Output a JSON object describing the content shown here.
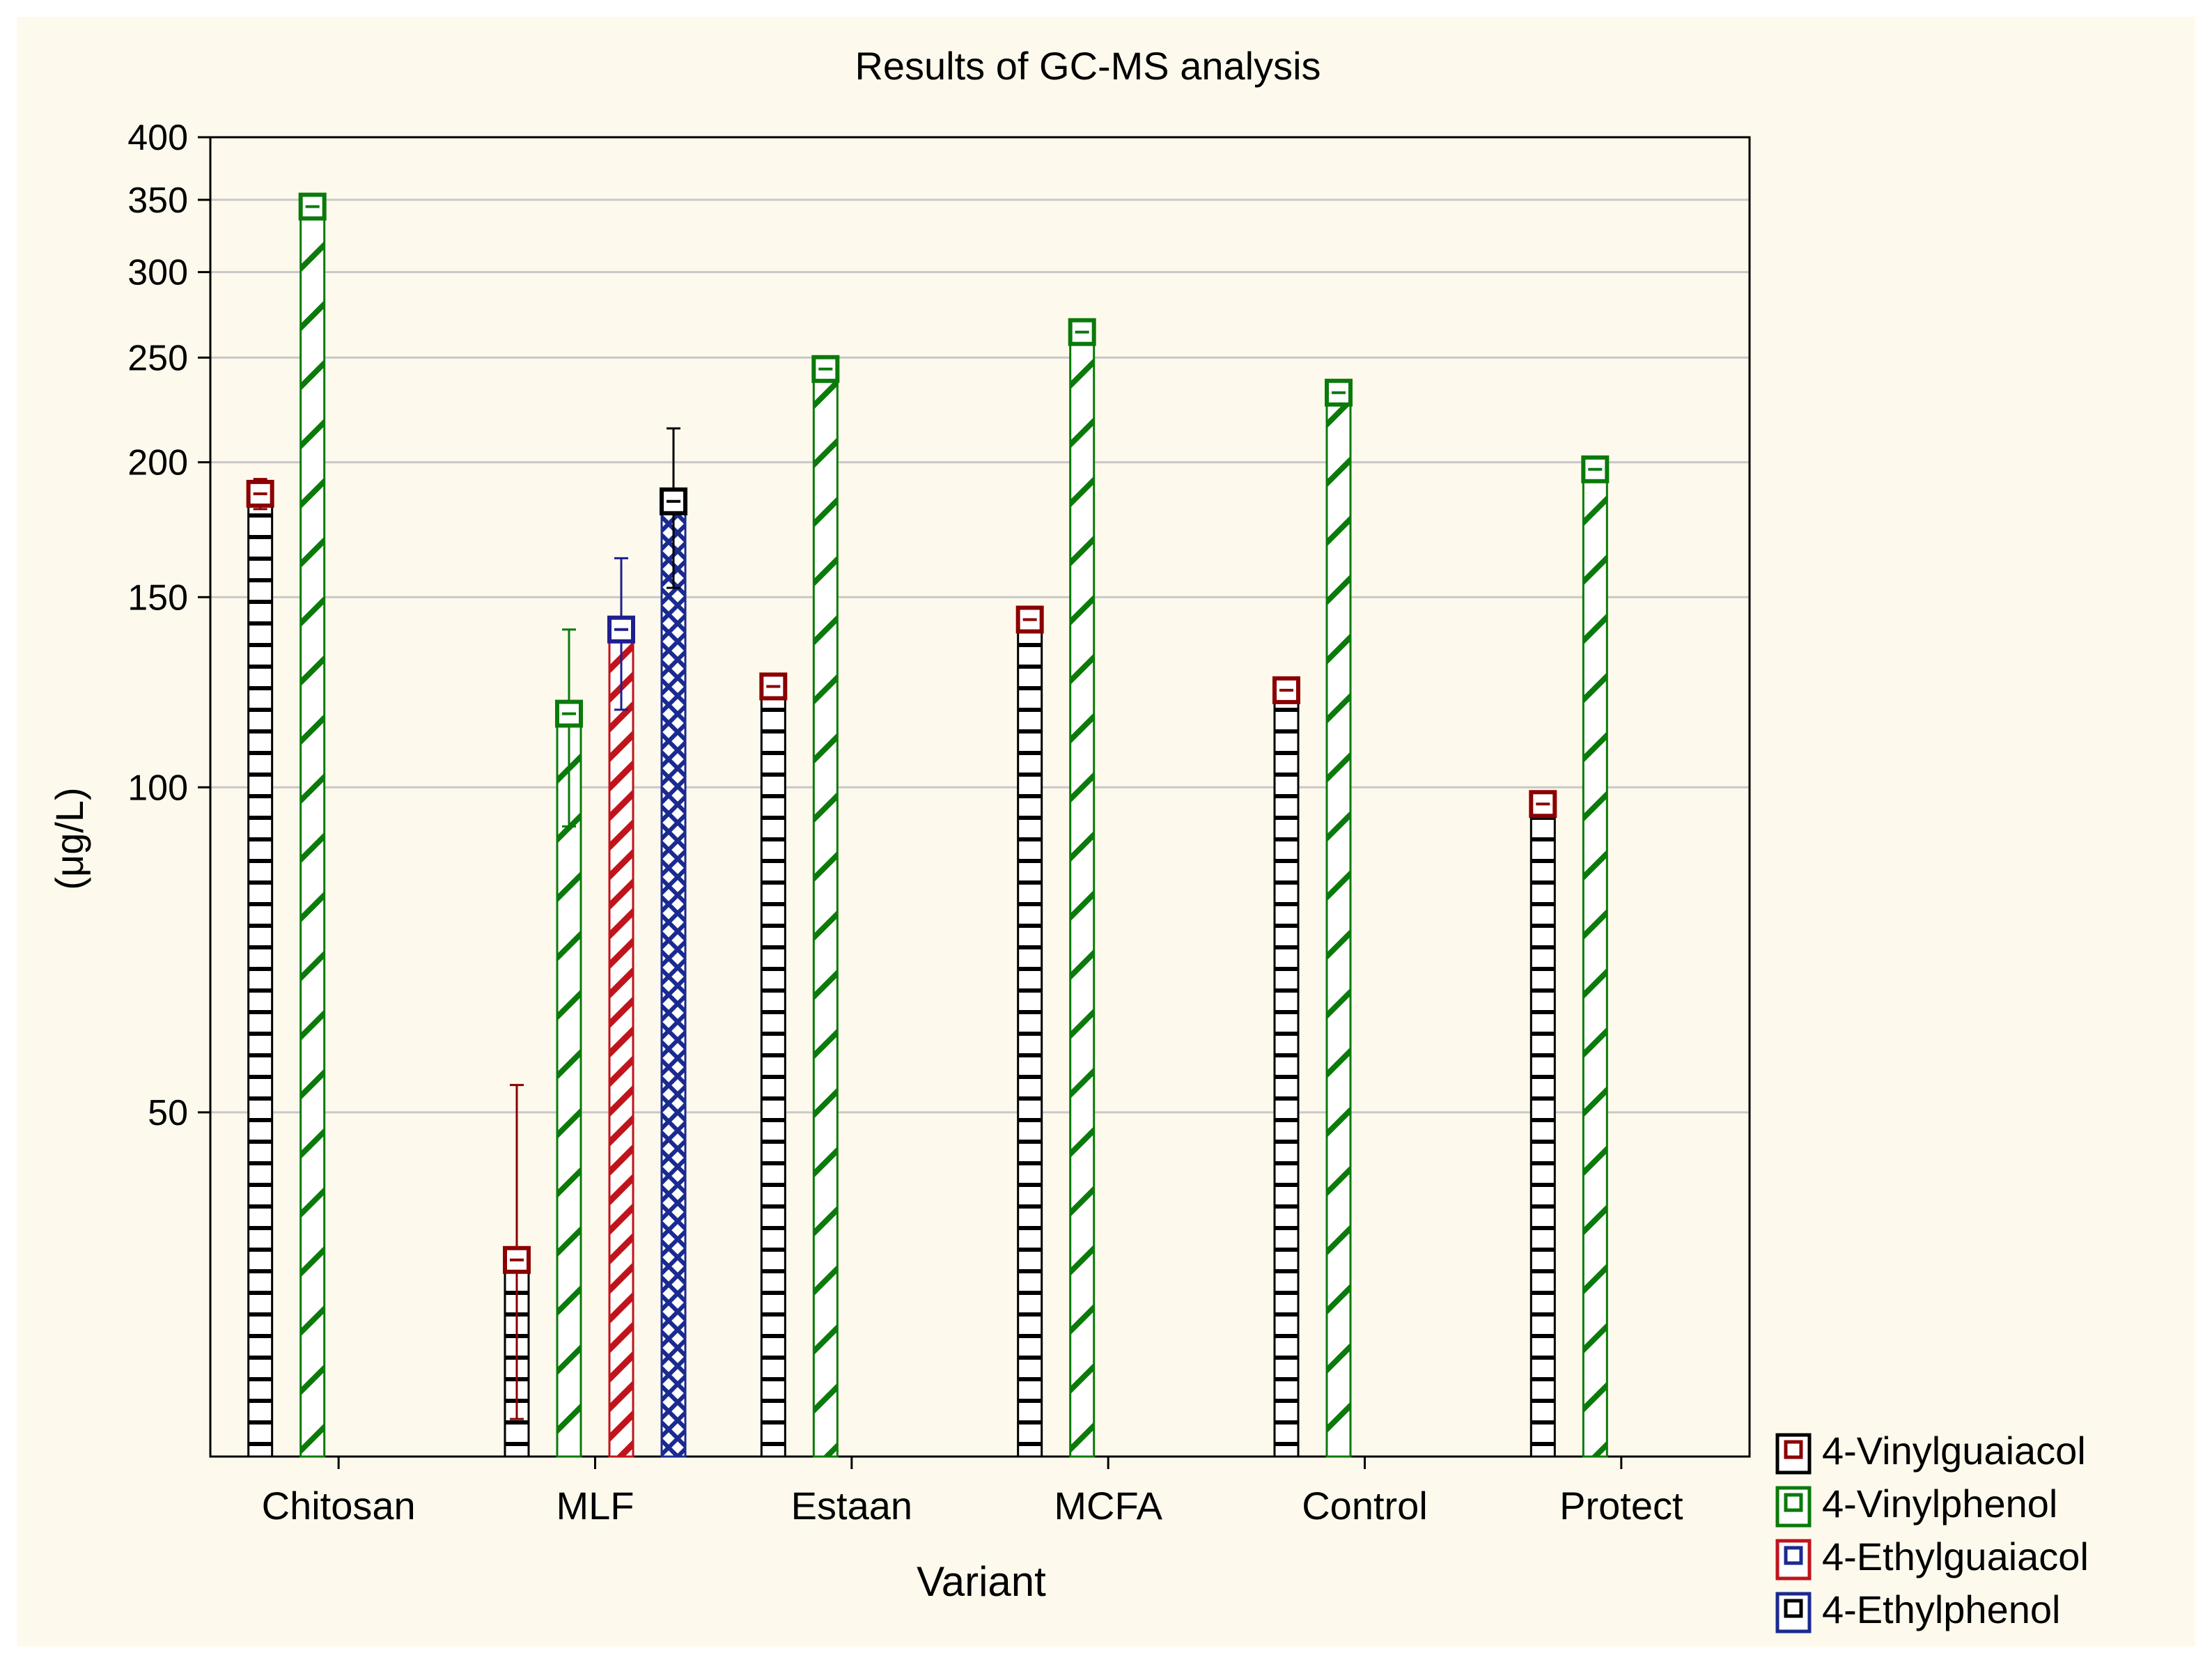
{
  "chart_data": {
    "type": "bar",
    "title": "Results of GC-MS analysis",
    "xlabel": "Variant",
    "ylabel": "(μg/L)",
    "yscale": "log",
    "ylim": [
      24,
      400
    ],
    "yticks": [
      50,
      100,
      150,
      200,
      250,
      300,
      350,
      400
    ],
    "ytick_labels": [
      "50",
      "100",
      "150",
      "200",
      "250",
      "300",
      "350",
      "400"
    ],
    "grid": true,
    "legend_position": "bottom-right",
    "categories": [
      "Chitosan",
      "MLF",
      "Estaan",
      "MCFA",
      "Control",
      "Protect"
    ],
    "series": [
      {
        "name": "4-Vinylguaiacol",
        "color": "#8b0000",
        "pattern": "ladder",
        "values": [
          187,
          36.5,
          124,
          143,
          123,
          96.5
        ],
        "err_low": [
          181,
          26,
          null,
          null,
          null,
          null
        ],
        "err_high": [
          193,
          53,
          null,
          null,
          null,
          null
        ]
      },
      {
        "name": "4-Vinylphenol",
        "color": "#0a7a0a",
        "pattern": "diagonal",
        "values": [
          345,
          117,
          244,
          264,
          232,
          197
        ],
        "err_low": [
          null,
          92,
          null,
          null,
          null,
          null
        ],
        "err_high": [
          null,
          140,
          null,
          null,
          null,
          null
        ]
      },
      {
        "name": "4-Ethylguaiacol",
        "color": "#1f1f8f",
        "pattern": "red-diagonal",
        "values": [
          null,
          140,
          null,
          null,
          null,
          null
        ],
        "err_low": [
          null,
          118,
          null,
          null,
          null,
          null
        ],
        "err_high": [
          null,
          163,
          null,
          null,
          null,
          null
        ]
      },
      {
        "name": "4-Ethylphenol",
        "color": "#000000",
        "pattern": "crosshatch",
        "values": [
          null,
          184,
          null,
          null,
          null,
          null
        ],
        "err_low": [
          null,
          153,
          null,
          null,
          null,
          null
        ],
        "err_high": [
          null,
          215,
          null,
          null,
          null,
          null
        ]
      }
    ]
  }
}
